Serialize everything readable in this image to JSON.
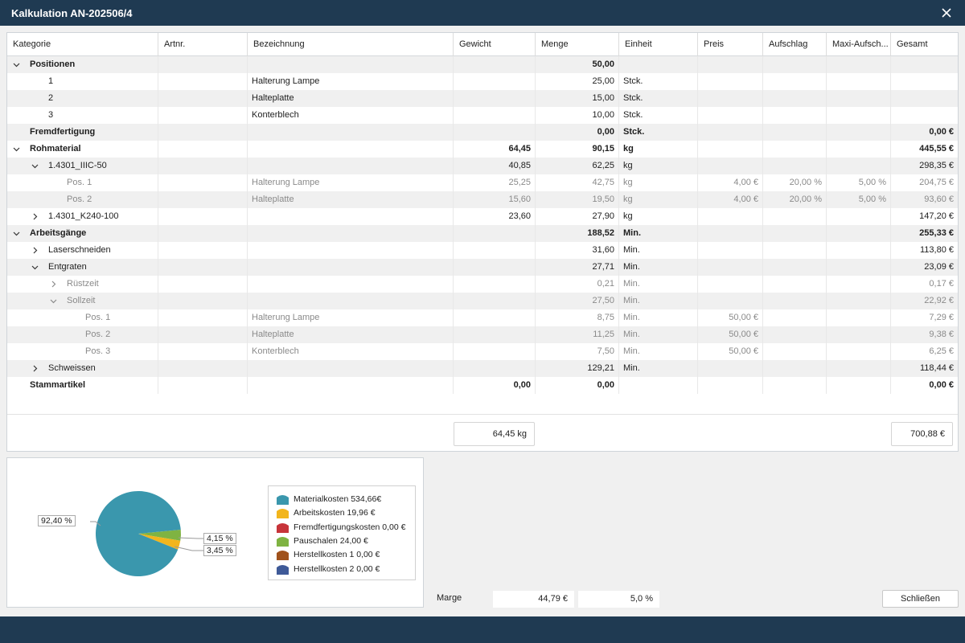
{
  "window": {
    "title": "Kalkulation AN-202506/4"
  },
  "columns": [
    "Kategorie",
    "Artnr.",
    "Bezeichnung",
    "Gewicht",
    "Menge",
    "Einheit",
    "Preis",
    "Aufschlag",
    "Maxi-Aufsch...",
    "Gesamt"
  ],
  "rows": [
    {
      "level": 0,
      "expand": "down",
      "style": "bold",
      "sep": true,
      "label": "Positionen",
      "artnr": "",
      "bez": "",
      "gewicht": "",
      "menge": "50,00",
      "einheit": "",
      "preis": "",
      "aufschlag": "",
      "maxi": "",
      "gesamt": ""
    },
    {
      "level": "n",
      "style": "normal",
      "sep": false,
      "label": "1",
      "artnr": "",
      "bez": "Halterung Lampe",
      "gewicht": "",
      "menge": "25,00",
      "einheit": "Stck.",
      "preis": "",
      "aufschlag": "",
      "maxi": "",
      "gesamt": ""
    },
    {
      "level": "n",
      "style": "normal",
      "sep": true,
      "label": "2",
      "artnr": "",
      "bez": "Halteplatte",
      "gewicht": "",
      "menge": "15,00",
      "einheit": "Stck.",
      "preis": "",
      "aufschlag": "",
      "maxi": "",
      "gesamt": ""
    },
    {
      "level": "n",
      "style": "normal",
      "sep": false,
      "label": "3",
      "artnr": "",
      "bez": "Konterblech",
      "gewicht": "",
      "menge": "10,00",
      "einheit": "Stck.",
      "preis": "",
      "aufschlag": "",
      "maxi": "",
      "gesamt": ""
    },
    {
      "level": 0,
      "expand": "none",
      "style": "bold",
      "sep": true,
      "label": "Fremdfertigung",
      "artnr": "",
      "bez": "",
      "gewicht": "",
      "menge": "0,00",
      "einheit": "Stck.",
      "preis": "",
      "aufschlag": "",
      "maxi": "",
      "gesamt": "0,00 €"
    },
    {
      "level": 0,
      "expand": "down",
      "style": "bold",
      "sep": false,
      "label": "Rohmaterial",
      "artnr": "",
      "bez": "",
      "gewicht": "64,45",
      "menge": "90,15",
      "einheit": "kg",
      "preis": "",
      "aufschlag": "",
      "maxi": "",
      "gesamt": "445,55 €"
    },
    {
      "level": 1,
      "expand": "down",
      "style": "normal",
      "sep": true,
      "label": "1.4301_IIIC-50",
      "artnr": "",
      "bez": "",
      "gewicht": "40,85",
      "menge": "62,25",
      "einheit": "kg",
      "preis": "",
      "aufschlag": "",
      "maxi": "",
      "gesamt": "298,35 €"
    },
    {
      "level": 2,
      "expand": "none",
      "style": "grey",
      "sep": false,
      "label": "Pos. 1",
      "artnr": "",
      "bez": "Halterung Lampe",
      "gewicht": "25,25",
      "menge": "42,75",
      "einheit": "kg",
      "preis": "4,00 €",
      "aufschlag": "20,00 %",
      "maxi": "5,00 %",
      "gesamt": "204,75 €"
    },
    {
      "level": 2,
      "expand": "none",
      "style": "grey",
      "sep": true,
      "label": "Pos. 2",
      "artnr": "",
      "bez": "Halteplatte",
      "gewicht": "15,60",
      "menge": "19,50",
      "einheit": "kg",
      "preis": "4,00 €",
      "aufschlag": "20,00 %",
      "maxi": "5,00 %",
      "gesamt": "93,60 €"
    },
    {
      "level": 1,
      "expand": "right",
      "style": "normal",
      "sep": false,
      "label": "1.4301_K240-100",
      "artnr": "",
      "bez": "",
      "gewicht": "23,60",
      "menge": "27,90",
      "einheit": "kg",
      "preis": "",
      "aufschlag": "",
      "maxi": "",
      "gesamt": "147,20 €"
    },
    {
      "level": 0,
      "expand": "down",
      "style": "bold",
      "sep": true,
      "label": "Arbeitsgänge",
      "artnr": "",
      "bez": "",
      "gewicht": "",
      "menge": "188,52",
      "einheit": "Min.",
      "preis": "",
      "aufschlag": "",
      "maxi": "",
      "gesamt": "255,33 €"
    },
    {
      "level": 1,
      "expand": "right",
      "style": "normal",
      "sep": false,
      "label": "Laserschneiden",
      "artnr": "",
      "bez": "",
      "gewicht": "",
      "menge": "31,60",
      "einheit": "Min.",
      "preis": "",
      "aufschlag": "",
      "maxi": "",
      "gesamt": "113,80 €"
    },
    {
      "level": 1,
      "expand": "down",
      "style": "normal",
      "sep": true,
      "label": "Entgraten",
      "artnr": "",
      "bez": "",
      "gewicht": "",
      "menge": "27,71",
      "einheit": "Min.",
      "preis": "",
      "aufschlag": "",
      "maxi": "",
      "gesamt": "23,09 €"
    },
    {
      "level": 2,
      "expand": "right",
      "style": "grey",
      "sep": false,
      "label": "Rüstzeit",
      "artnr": "",
      "bez": "",
      "gewicht": "",
      "menge": "0,21",
      "einheit": "Min.",
      "preis": "",
      "aufschlag": "",
      "maxi": "",
      "gesamt": "0,17 €"
    },
    {
      "level": 2,
      "expand": "down",
      "style": "grey",
      "sep": true,
      "label": "Sollzeit",
      "artnr": "",
      "bez": "",
      "gewicht": "",
      "menge": "27,50",
      "einheit": "Min.",
      "preis": "",
      "aufschlag": "",
      "maxi": "",
      "gesamt": "22,92 €"
    },
    {
      "level": 3,
      "expand": "none",
      "style": "grey",
      "sep": false,
      "label": "Pos. 1",
      "artnr": "",
      "bez": "Halterung Lampe",
      "gewicht": "",
      "menge": "8,75",
      "einheit": "Min.",
      "preis": "50,00 €",
      "aufschlag": "",
      "maxi": "",
      "gesamt": "7,29 €"
    },
    {
      "level": 3,
      "expand": "none",
      "style": "grey",
      "sep": true,
      "label": "Pos. 2",
      "artnr": "",
      "bez": "Halteplatte",
      "gewicht": "",
      "menge": "11,25",
      "einheit": "Min.",
      "preis": "50,00 €",
      "aufschlag": "",
      "maxi": "",
      "gesamt": "9,38 €"
    },
    {
      "level": 3,
      "expand": "none",
      "style": "grey",
      "sep": false,
      "label": "Pos. 3",
      "artnr": "",
      "bez": "Konterblech",
      "gewicht": "",
      "menge": "7,50",
      "einheit": "Min.",
      "preis": "50,00 €",
      "aufschlag": "",
      "maxi": "",
      "gesamt": "6,25 €"
    },
    {
      "level": 1,
      "expand": "right",
      "style": "normal",
      "sep": true,
      "label": "Schweissen",
      "artnr": "",
      "bez": "",
      "gewicht": "",
      "menge": "129,21",
      "einheit": "Min.",
      "preis": "",
      "aufschlag": "",
      "maxi": "",
      "gesamt": "118,44 €"
    },
    {
      "level": 0,
      "expand": "none",
      "style": "bold",
      "sep": false,
      "label": "Stammartikel",
      "artnr": "",
      "bez": "",
      "gewicht": "0,00",
      "menge": "0,00",
      "einheit": "",
      "preis": "",
      "aufschlag": "",
      "maxi": "",
      "gesamt": "0,00 €"
    }
  ],
  "totals": {
    "gewicht": "64,45 kg",
    "gesamt": "700,88 €"
  },
  "chart_data": {
    "type": "pie",
    "series": [
      {
        "name": "Materialkosten 534,66€",
        "value": 534.66,
        "color": "#3a97ad"
      },
      {
        "name": "Arbeitskosten 19,96 €",
        "value": 19.96,
        "color": "#f2b51c"
      },
      {
        "name": "Fremdfertigungskosten 0,00 €",
        "value": 0.0,
        "color": "#c7343a"
      },
      {
        "name": "Pauschalen 24,00 €",
        "value": 24.0,
        "color": "#7fb342"
      },
      {
        "name": "Herstellkosten 1 0,00 €",
        "value": 0.0,
        "color": "#a0521c"
      },
      {
        "name": "Herstellkosten 2 0,00 €",
        "value": 0.0,
        "color": "#3f5a98"
      }
    ],
    "slice_labels": [
      "92,40 %",
      "4,15 %",
      "3,45 %"
    ]
  },
  "marge": {
    "label": "Marge",
    "amount": "44,79 €",
    "percent": "5,0 %"
  },
  "buttons": {
    "close": "Schließen"
  }
}
